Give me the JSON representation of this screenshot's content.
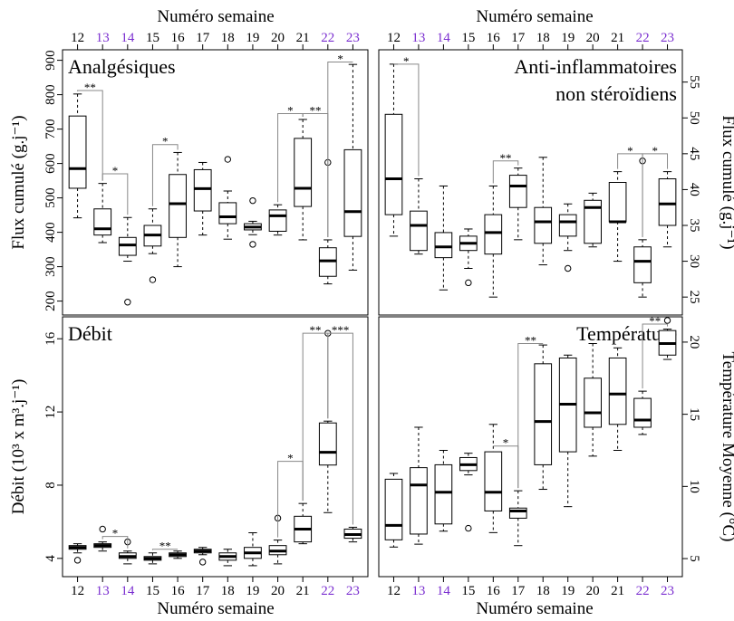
{
  "week_axis": {
    "top_label": "Numéro semaine",
    "bottom_label": "Numéro semaine",
    "weeks": [
      "12",
      "13",
      "14",
      "15",
      "16",
      "17",
      "18",
      "19",
      "20",
      "21",
      "22",
      "23"
    ],
    "highlight_weeks": [
      "13",
      "14",
      "22",
      "23"
    ],
    "highlight_color": "#7b2fd0"
  },
  "chart_data": [
    {
      "type": "box",
      "id": "analgesiques",
      "title": "Analgésiques",
      "ylabel": "Flux cumulé (g.j⁻¹)",
      "ylim": [
        170,
        920
      ],
      "yticks": [
        200,
        300,
        400,
        500,
        600,
        700,
        800,
        900
      ],
      "categories": [
        "12",
        "13",
        "14",
        "15",
        "16",
        "17",
        "18",
        "19",
        "20",
        "21",
        "22",
        "23"
      ],
      "boxes": [
        {
          "min": 442,
          "q1": 528,
          "median": 585,
          "q3": 738,
          "max": 802,
          "outliers": []
        },
        {
          "min": 370,
          "q1": 392,
          "median": 410,
          "q3": 468,
          "max": 542,
          "outliers": []
        },
        {
          "min": 316,
          "q1": 333,
          "median": 363,
          "q3": 385,
          "max": 443,
          "outliers": [
            197
          ]
        },
        {
          "min": 338,
          "q1": 360,
          "median": 392,
          "q3": 420,
          "max": 468,
          "outliers": [
            262
          ]
        },
        {
          "min": 300,
          "q1": 385,
          "median": 483,
          "q3": 568,
          "max": 632,
          "outliers": []
        },
        {
          "min": 392,
          "q1": 462,
          "median": 527,
          "q3": 582,
          "max": 603,
          "outliers": []
        },
        {
          "min": 380,
          "q1": 425,
          "median": 445,
          "q3": 486,
          "max": 520,
          "outliers": [
            612
          ]
        },
        {
          "min": 393,
          "q1": 407,
          "median": 415,
          "q3": 425,
          "max": 432,
          "outliers": [
            492,
            365
          ]
        },
        {
          "min": 392,
          "q1": 403,
          "median": 448,
          "q3": 465,
          "max": 480,
          "outliers": []
        },
        {
          "min": 378,
          "q1": 475,
          "median": 528,
          "q3": 673,
          "max": 728,
          "outliers": []
        },
        {
          "min": 250,
          "q1": 272,
          "median": 317,
          "q3": 355,
          "max": 378,
          "outliers": [
            603
          ]
        },
        {
          "min": 290,
          "q1": 388,
          "median": 460,
          "q3": 640,
          "max": 888,
          "outliers": []
        }
      ],
      "brackets": [
        {
          "from": "12",
          "to": "13",
          "label": "**",
          "level": 812
        },
        {
          "from": "13",
          "to": "14",
          "label": "*",
          "level": 570
        },
        {
          "from": "15",
          "to": "16",
          "label": "*",
          "level": 655
        },
        {
          "from": "20",
          "to": "21",
          "label": "*",
          "level": 745
        },
        {
          "from": "21",
          "to": "22",
          "label": "**",
          "level": 745
        },
        {
          "from": "22",
          "to": "23",
          "label": "*",
          "level": 895
        }
      ]
    },
    {
      "type": "box",
      "id": "ains",
      "title": [
        "Anti-inflammatoires",
        "non stéroïdiens"
      ],
      "ylabel": "Flux cumulé (g.j⁻¹)",
      "ylim": [
        23,
        59
      ],
      "yticks": [
        25,
        30,
        35,
        40,
        45,
        50,
        55
      ],
      "categories": [
        "12",
        "13",
        "14",
        "15",
        "16",
        "17",
        "18",
        "19",
        "20",
        "21",
        "22",
        "23"
      ],
      "boxes": [
        {
          "min": 33.5,
          "q1": 36.5,
          "median": 41.5,
          "q3": 50.5,
          "max": 57.5,
          "outliers": []
        },
        {
          "min": 31,
          "q1": 31.5,
          "median": 35,
          "q3": 37,
          "max": 41.5,
          "outliers": []
        },
        {
          "min": 26,
          "q1": 30.5,
          "median": 32,
          "q3": 34,
          "max": 40.5,
          "outliers": []
        },
        {
          "min": 29,
          "q1": 31.5,
          "median": 32.5,
          "q3": 33.5,
          "max": 34.5,
          "outliers": [
            27
          ]
        },
        {
          "min": 25,
          "q1": 31,
          "median": 34,
          "q3": 36.5,
          "max": 40.5,
          "outliers": []
        },
        {
          "min": 33,
          "q1": 37.5,
          "median": 40.5,
          "q3": 42,
          "max": 43,
          "outliers": []
        },
        {
          "min": 29.5,
          "q1": 32.5,
          "median": 35.5,
          "q3": 37.5,
          "max": 44.5,
          "outliers": []
        },
        {
          "min": 31.5,
          "q1": 33.5,
          "median": 35.5,
          "q3": 36.5,
          "max": 38,
          "outliers": [
            29
          ]
        },
        {
          "min": 32,
          "q1": 32.5,
          "median": 37.5,
          "q3": 38.5,
          "max": 39.5,
          "outliers": []
        },
        {
          "min": 30,
          "q1": 35.5,
          "median": 35.5,
          "q3": 41,
          "max": 42.5,
          "outliers": []
        },
        {
          "min": 25,
          "q1": 27,
          "median": 30,
          "q3": 32,
          "max": 33,
          "outliers": [
            44
          ]
        },
        {
          "min": 32,
          "q1": 35,
          "median": 38,
          "q3": 41.5,
          "max": 42.5,
          "outliers": []
        }
      ],
      "brackets": [
        {
          "from": "12",
          "to": "13",
          "label": "*",
          "level": 57.5
        },
        {
          "from": "16",
          "to": "17",
          "label": "**",
          "level": 44
        },
        {
          "from": "21",
          "to": "22",
          "label": "*",
          "level": 45
        },
        {
          "from": "22",
          "to": "23",
          "label": "*",
          "level": 45
        }
      ]
    },
    {
      "type": "box",
      "id": "debit",
      "title": "Débit",
      "ylabel": "Débit (10³ x m³.j⁻¹)",
      "ylim": [
        3.2,
        17
      ],
      "yticks": [
        4,
        8,
        12,
        16
      ],
      "categories": [
        "12",
        "13",
        "14",
        "15",
        "16",
        "17",
        "18",
        "19",
        "20",
        "21",
        "22",
        "23"
      ],
      "boxes": [
        {
          "min": 4.3,
          "q1": 4.5,
          "median": 4.6,
          "q3": 4.7,
          "max": 4.8,
          "outliers": [
            3.9
          ]
        },
        {
          "min": 4.4,
          "q1": 4.6,
          "median": 4.7,
          "q3": 4.8,
          "max": 4.9,
          "outliers": [
            5.6
          ]
        },
        {
          "min": 3.7,
          "q1": 4.0,
          "median": 4.1,
          "q3": 4.3,
          "max": 4.4,
          "outliers": [
            4.9
          ]
        },
        {
          "min": 3.7,
          "q1": 3.9,
          "median": 4.0,
          "q3": 4.1,
          "max": 4.3,
          "outliers": []
        },
        {
          "min": 4.0,
          "q1": 4.1,
          "median": 4.2,
          "q3": 4.3,
          "max": 4.4,
          "outliers": []
        },
        {
          "min": 4.2,
          "q1": 4.3,
          "median": 4.4,
          "q3": 4.5,
          "max": 4.6,
          "outliers": [
            3.8
          ]
        },
        {
          "min": 3.6,
          "q1": 3.9,
          "median": 4.1,
          "q3": 4.3,
          "max": 4.5,
          "outliers": []
        },
        {
          "min": 3.6,
          "q1": 4.0,
          "median": 4.3,
          "q3": 4.6,
          "max": 5.4,
          "outliers": []
        },
        {
          "min": 3.7,
          "q1": 4.2,
          "median": 4.4,
          "q3": 4.7,
          "max": 5.0,
          "outliers": [
            6.2
          ]
        },
        {
          "min": 4.8,
          "q1": 4.9,
          "median": 5.6,
          "q3": 6.3,
          "max": 7.0,
          "outliers": []
        },
        {
          "min": 6.5,
          "q1": 9.1,
          "median": 9.8,
          "q3": 11.4,
          "max": 11.5,
          "outliers": [
            16.3
          ]
        },
        {
          "min": 4.9,
          "q1": 5.1,
          "median": 5.3,
          "q3": 5.6,
          "max": 5.7,
          "outliers": []
        }
      ],
      "brackets": [
        {
          "from": "13",
          "to": "14",
          "label": "*",
          "level": 5.2
        },
        {
          "from": "15",
          "to": "16",
          "label": "**",
          "level": 4.5
        },
        {
          "from": "20",
          "to": "21",
          "label": "*",
          "level": 9.3
        },
        {
          "from": "21",
          "to": "22",
          "label": "**",
          "level": 16.3
        },
        {
          "from": "22",
          "to": "23",
          "label": "***",
          "level": 16.3
        }
      ]
    },
    {
      "type": "box",
      "id": "temperature",
      "title": "Température",
      "ylabel": "Température Moyenne (°C)",
      "ylim": [
        4,
        21.5
      ],
      "yticks": [
        5,
        10,
        15,
        20
      ],
      "categories": [
        "12",
        "13",
        "14",
        "15",
        "16",
        "17",
        "18",
        "19",
        "20",
        "21",
        "22",
        "23"
      ],
      "boxes": [
        {
          "min": 5.8,
          "q1": 6.3,
          "median": 7.3,
          "q3": 10.5,
          "max": 10.9,
          "outliers": []
        },
        {
          "min": 6.0,
          "q1": 6.7,
          "median": 10.1,
          "q3": 11.3,
          "max": 14.1,
          "outliers": []
        },
        {
          "min": 6.9,
          "q1": 7.4,
          "median": 9.6,
          "q3": 11.5,
          "max": 12.5,
          "outliers": []
        },
        {
          "min": 10.8,
          "q1": 11.1,
          "median": 11.5,
          "q3": 12.0,
          "max": 12.3,
          "outliers": [
            7.1
          ]
        },
        {
          "min": 6.8,
          "q1": 8.3,
          "median": 9.6,
          "q3": 12.4,
          "max": 14.3,
          "outliers": []
        },
        {
          "min": 5.9,
          "q1": 7.8,
          "median": 8.3,
          "q3": 8.5,
          "max": 9.7,
          "outliers": []
        },
        {
          "min": 9.8,
          "q1": 11.5,
          "median": 14.5,
          "q3": 18.5,
          "max": 19.8,
          "outliers": []
        },
        {
          "min": 8.6,
          "q1": 12.4,
          "median": 15.7,
          "q3": 18.9,
          "max": 19.1,
          "outliers": []
        },
        {
          "min": 12.1,
          "q1": 14.1,
          "median": 15.1,
          "q3": 17.5,
          "max": 19.9,
          "outliers": []
        },
        {
          "min": 12.5,
          "q1": 14.3,
          "median": 16.4,
          "q3": 18.9,
          "max": 19.6,
          "outliers": []
        },
        {
          "min": 13.6,
          "q1": 14.1,
          "median": 14.6,
          "q3": 16.1,
          "max": 16.6,
          "outliers": []
        },
        {
          "min": 18.8,
          "q1": 19.1,
          "median": 19.9,
          "q3": 20.8,
          "max": 20.9,
          "outliers": [
            22.7
          ]
        }
      ],
      "brackets": [
        {
          "from": "16",
          "to": "17",
          "label": "*",
          "level": 12.8
        },
        {
          "from": "17",
          "to": "18",
          "label": "**",
          "level": 19.9
        },
        {
          "from": "22",
          "to": "23",
          "label": "**",
          "level": 22.4
        }
      ]
    }
  ]
}
